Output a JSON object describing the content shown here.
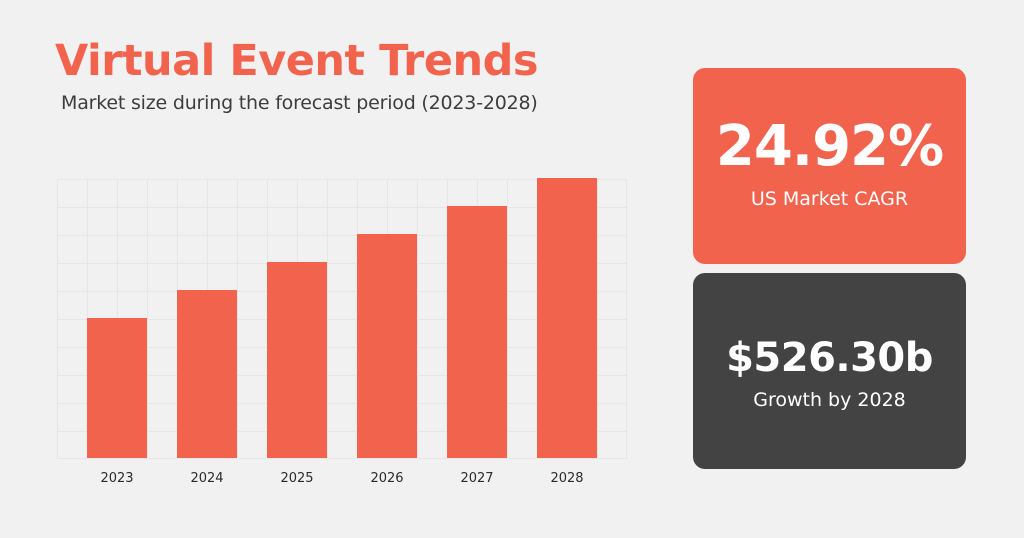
{
  "header": {
    "title": "Virtual Event Trends",
    "subtitle": "Market size during the forecast period (2023-2028)"
  },
  "cards": [
    {
      "value": "24.92%",
      "label": "US Market CAGR",
      "color": "#f2634e"
    },
    {
      "value": "$526.30b",
      "label": "Growth by 2028",
      "color": "#434343"
    }
  ],
  "colors": {
    "accent": "#f2634e",
    "dark": "#434343",
    "background": "#f1f1f1"
  },
  "chart_data": {
    "type": "bar",
    "title": "Virtual Event Trends",
    "subtitle": "Market size during the forecast period (2023-2028)",
    "categories": [
      "2023",
      "2024",
      "2025",
      "2026",
      "2027",
      "2028"
    ],
    "values": [
      5,
      6,
      7,
      8,
      9,
      10
    ],
    "xlabel": "",
    "ylabel": "",
    "ylim": [
      0,
      10
    ],
    "grid": true,
    "legend": null,
    "note": "Relative bar heights in grid units; no y-axis tick labels shown"
  }
}
